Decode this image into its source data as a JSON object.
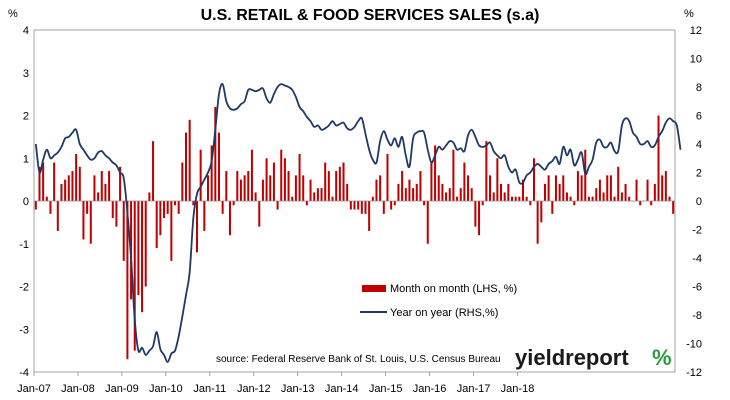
{
  "chart_data": {
    "type": "bar+line",
    "title": "U.S. RETAIL & FOOD SERVICES SALES (s.a)",
    "left_axis": {
      "unit": "%",
      "ylim": [
        -4,
        4
      ],
      "ticks": [
        "4",
        "3",
        "2",
        "1",
        "0",
        "-1",
        "-2",
        "-3",
        "-4"
      ]
    },
    "right_axis": {
      "unit": "%",
      "ylim": [
        -12,
        12
      ],
      "ticks": [
        "12",
        "10",
        "8",
        "6",
        "4",
        "2",
        "0",
        "-2",
        "-4",
        "-6",
        "-8",
        "-10",
        "-12"
      ]
    },
    "x_tick_labels": [
      "Jan-07",
      "Jan-08",
      "Jan-09",
      "Jan-10",
      "Jan-11",
      "Jan-12",
      "Jan-13",
      "Jan-14",
      "Jan-15",
      "Jan-16",
      "Jan-17",
      "Jan-18"
    ],
    "x_start": "2007-01",
    "series": [
      {
        "name": "Month on month (LHS, %)",
        "kind": "bar",
        "color": "#c00000",
        "axis": "left",
        "values": [
          -0.2,
          0.8,
          0.9,
          0.1,
          -0.3,
          0.9,
          -0.7,
          0.4,
          0.5,
          0.6,
          0.7,
          1.1,
          0.8,
          -0.9,
          -0.3,
          -1.0,
          0.6,
          0.2,
          0.7,
          0.4,
          0.7,
          -0.4,
          -0.6,
          0.8,
          -1.4,
          -3.7,
          -2.3,
          -3.5,
          -2.2,
          -2.6,
          -2.0,
          0.2,
          1.4,
          -1.1,
          -0.8,
          -0.4,
          -0.3,
          -1.4,
          -0.1,
          -0.3,
          0.9,
          1.6,
          1.9,
          -0.1,
          -1.2,
          1.2,
          -0.7,
          0.6,
          1.3,
          2.2,
          1.6,
          -0.3,
          0.7,
          -0.8,
          -0.1,
          0.7,
          0.5,
          0.6,
          0.7,
          1.2,
          0.2,
          -0.6,
          0.5,
          1.0,
          0.6,
          0.9,
          -0.2,
          1.2,
          1.0,
          0.7,
          0.1,
          0.6,
          1.1,
          0.6,
          -0.1,
          0.5,
          0.2,
          0.3,
          0.3,
          0.9,
          0.7,
          0.1,
          0.7,
          0.8,
          0.9,
          0.4,
          -0.2,
          -0.2,
          -0.2,
          -0.3,
          -0.3,
          -0.7,
          0.1,
          0.5,
          0.6,
          -0.3,
          1.1,
          -0.2,
          -0.1,
          0.4,
          0.7,
          0.3,
          0.5,
          0.3,
          0.4,
          0.7,
          -0.1,
          -1.0,
          0.9,
          1.3,
          0.6,
          0.4,
          0.2,
          0.3,
          1.2,
          0.1,
          0.3,
          0.9,
          0.6,
          0.3,
          -0.6,
          -0.8,
          -0.1,
          1.4,
          0.6,
          0.2,
          1.0,
          0.4,
          0.2,
          0.4,
          0.1,
          0.1,
          0.1,
          0.5,
          0.1,
          -0.1,
          1.0,
          -1.0,
          -0.5,
          0.4,
          0.6,
          -0.3,
          0.6,
          0.4,
          0.6,
          0.2,
          0.1,
          -0.1,
          0.7,
          0.6,
          1.2,
          0.1,
          0.1,
          0.3,
          0.5,
          0.2,
          0.6,
          0.6,
          0.1,
          0.8,
          0.2,
          0.4,
          0.1,
          0.0,
          0.5,
          -0.1,
          0.0,
          0.5,
          -0.1,
          0.4,
          2.0,
          0.6,
          0.7,
          0.1,
          -0.3
        ],
        "bar_color": "#c00000"
      },
      {
        "name": "Year on year (RHS,%)",
        "kind": "line",
        "color": "#1f3864",
        "axis": "right",
        "values": [
          4.0,
          2.0,
          2.9,
          3.6,
          3.0,
          3.2,
          3.4,
          3.8,
          4.4,
          4.5,
          4.8,
          5.0,
          4.0,
          3.6,
          3.2,
          2.9,
          3.0,
          3.4,
          3.5,
          3.2,
          3.0,
          2.7,
          2.5,
          2.0,
          1.6,
          -0.8,
          -4.0,
          -8.3,
          -10.5,
          -10.3,
          -10.8,
          -10.5,
          -10.2,
          -9.2,
          -10.4,
          -10.8,
          -11.3,
          -10.7,
          -10.5,
          -9.5,
          -8.1,
          -6.6,
          -5.0,
          -1.2,
          0.5,
          1.0,
          1.5,
          2.0,
          2.8,
          5.0,
          7.5,
          8.2,
          7.0,
          6.5,
          6.4,
          6.5,
          6.8,
          7.0,
          7.8,
          7.8,
          7.7,
          7.8,
          7.9,
          7.2,
          6.9,
          7.5,
          8.0,
          8.2,
          8.1,
          8.0,
          7.8,
          7.3,
          6.6,
          6.3,
          5.9,
          5.6,
          5.2,
          5.3,
          5.0,
          5.1,
          5.3,
          5.6,
          5.3,
          5.4,
          5.5,
          5.1,
          5.0,
          5.2,
          5.6,
          5.8,
          4.7,
          3.6,
          2.9,
          2.7,
          4.2,
          4.9,
          4.3,
          3.9,
          4.4,
          3.8,
          4.5,
          3.2,
          2.4,
          4.4,
          4.8,
          4.9,
          4.8,
          3.6,
          2.7,
          3.2,
          3.8,
          3.6,
          3.9,
          4.2,
          4.1,
          3.6,
          3.7,
          3.5,
          4.6,
          5.0,
          4.5,
          3.9,
          3.8,
          3.9,
          4.1,
          3.5,
          3.2,
          3.0,
          3.2,
          2.4,
          2.0,
          2.2,
          1.3,
          1.3,
          1.8,
          2.0,
          2.4,
          2.6,
          2.4,
          2.2,
          2.6,
          2.8,
          3.1,
          2.6,
          3.8,
          3.2,
          3.6,
          2.5,
          2.9,
          3.4,
          1.9,
          2.4,
          2.9,
          4.1,
          4.3,
          3.8,
          3.8,
          4.1,
          3.5,
          3.5,
          5.3,
          5.8,
          5.6,
          4.8,
          4.5,
          4.0,
          4.0,
          4.2,
          3.8,
          3.9,
          4.5,
          4.9,
          5.5,
          5.8,
          5.6,
          5.3,
          3.6
        ]
      }
    ],
    "grid": false,
    "legend_position": "lower-center"
  },
  "annotations": {
    "source": "source: Federal Reserve Bank of St. Louis, U.S. Census Bureau",
    "logo_text_a": "yieldreport",
    "logo_text_b": "%"
  }
}
